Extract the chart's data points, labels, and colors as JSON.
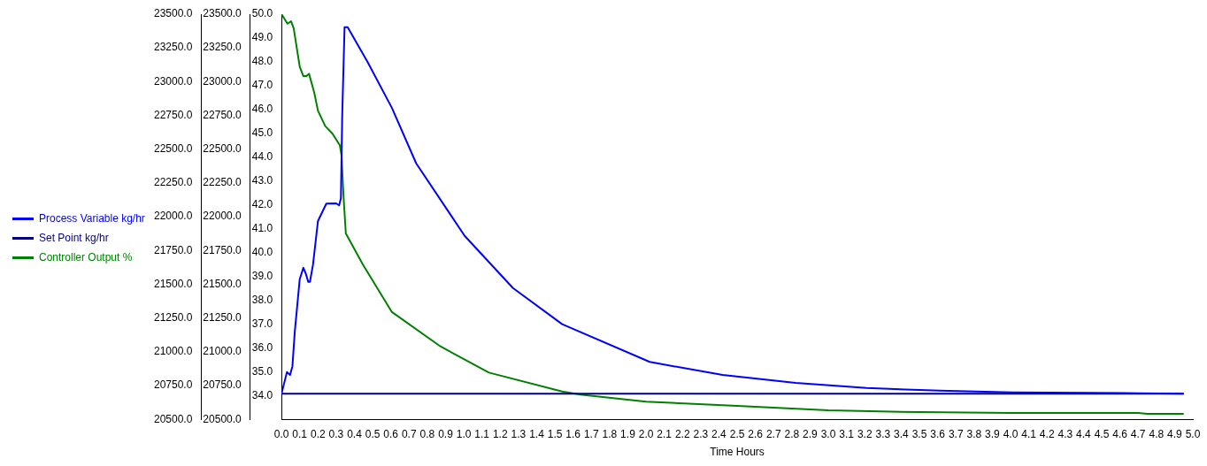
{
  "chart_data": {
    "type": "line",
    "xlabel": "Time Hours",
    "legend": "left",
    "grid": false,
    "marker": "none",
    "line_style": "solid",
    "xlim": [
      0,
      5
    ],
    "xticks": [
      {
        "value": 0,
        "label": "0.0"
      },
      {
        "value": 0.1,
        "label": "0.1"
      },
      {
        "value": 0.2,
        "label": "0.2"
      },
      {
        "value": 0.3,
        "label": "0.3"
      },
      {
        "value": 0.4,
        "label": "0.4"
      },
      {
        "value": 0.5,
        "label": "0.5"
      },
      {
        "value": 0.6,
        "label": "0.6"
      },
      {
        "value": 0.7,
        "label": "0.7"
      },
      {
        "value": 0.8,
        "label": "0.8"
      },
      {
        "value": 0.9,
        "label": "0.9"
      },
      {
        "value": 1,
        "label": "1.0"
      },
      {
        "value": 1.1,
        "label": "1.1"
      },
      {
        "value": 1.2,
        "label": "1.2"
      },
      {
        "value": 1.3,
        "label": "1.3"
      },
      {
        "value": 1.4,
        "label": "1.4"
      },
      {
        "value": 1.5,
        "label": "1.5"
      },
      {
        "value": 1.6,
        "label": "1.6"
      },
      {
        "value": 1.7,
        "label": "1.7"
      },
      {
        "value": 1.8,
        "label": "1.8"
      },
      {
        "value": 1.9,
        "label": "1.9"
      },
      {
        "value": 2,
        "label": "2.0"
      },
      {
        "value": 2.1,
        "label": "2.1"
      },
      {
        "value": 2.2,
        "label": "2.2"
      },
      {
        "value": 2.3,
        "label": "2.3"
      },
      {
        "value": 2.4,
        "label": "2.4"
      },
      {
        "value": 2.5,
        "label": "2.5"
      },
      {
        "value": 2.6,
        "label": "2.6"
      },
      {
        "value": 2.7,
        "label": "2.7"
      },
      {
        "value": 2.8,
        "label": "2.8"
      },
      {
        "value": 2.9,
        "label": "2.9"
      },
      {
        "value": 3,
        "label": "3.0"
      },
      {
        "value": 3.1,
        "label": "3.1"
      },
      {
        "value": 3.2,
        "label": "3.2"
      },
      {
        "value": 3.3,
        "label": "3.3"
      },
      {
        "value": 3.4,
        "label": "3.4"
      },
      {
        "value": 3.5,
        "label": "3.5"
      },
      {
        "value": 3.6,
        "label": "3.6"
      },
      {
        "value": 3.7,
        "label": "3.7"
      },
      {
        "value": 3.8,
        "label": "3.8"
      },
      {
        "value": 3.9,
        "label": "3.9"
      },
      {
        "value": 4,
        "label": "4.0"
      },
      {
        "value": 4.1,
        "label": "4.1"
      },
      {
        "value": 4.2,
        "label": "4.2"
      },
      {
        "value": 4.3,
        "label": "4.3"
      },
      {
        "value": 4.4,
        "label": "4.4"
      },
      {
        "value": 4.5,
        "label": "4.5"
      },
      {
        "value": 4.6,
        "label": "4.6"
      },
      {
        "value": 4.7,
        "label": "4.7"
      },
      {
        "value": 4.8,
        "label": "4.8"
      },
      {
        "value": 4.9,
        "label": "4.9"
      },
      {
        "value": 5,
        "label": "5.0"
      }
    ],
    "ylim": [
      20500,
      23500
    ],
    "yticks": [
      {
        "value": 20500,
        "label": "20500.0"
      },
      {
        "value": 20750,
        "label": "20750.0"
      },
      {
        "value": 21000,
        "label": "21000.0"
      },
      {
        "value": 21250,
        "label": "21250.0"
      },
      {
        "value": 21500,
        "label": "21500.0"
      },
      {
        "value": 21750,
        "label": "21750.0"
      },
      {
        "value": 22000,
        "label": "22000.0"
      },
      {
        "value": 22250,
        "label": "22250.0"
      },
      {
        "value": 22500,
        "label": "22500.0"
      },
      {
        "value": 22750,
        "label": "22750.0"
      },
      {
        "value": 23000,
        "label": "23000.0"
      },
      {
        "value": 23250,
        "label": "23250.0"
      },
      {
        "value": 23500,
        "label": "23500.0"
      }
    ],
    "y2lim": [
      20500,
      23500
    ],
    "y2ticks": [
      {
        "value": 20500,
        "label": "20500.0"
      },
      {
        "value": 20750,
        "label": "20750.0"
      },
      {
        "value": 21000,
        "label": "21000.0"
      },
      {
        "value": 21250,
        "label": "21250.0"
      },
      {
        "value": 21500,
        "label": "21500.0"
      },
      {
        "value": 21750,
        "label": "21750.0"
      },
      {
        "value": 22000,
        "label": "22000.0"
      },
      {
        "value": 22250,
        "label": "22250.0"
      },
      {
        "value": 22500,
        "label": "22500.0"
      },
      {
        "value": 22750,
        "label": "22750.0"
      },
      {
        "value": 23000,
        "label": "23000.0"
      },
      {
        "value": 23250,
        "label": "23250.0"
      },
      {
        "value": 23500,
        "label": "23500.0"
      }
    ],
    "y3lim": [
      33,
      50
    ],
    "y3ticks": [
      {
        "value": 34,
        "label": "34.0"
      },
      {
        "value": 35,
        "label": "35.0"
      },
      {
        "value": 36,
        "label": "36.0"
      },
      {
        "value": 37,
        "label": "37.0"
      },
      {
        "value": 38,
        "label": "38.0"
      },
      {
        "value": 39,
        "label": "39.0"
      },
      {
        "value": 40,
        "label": "40.0"
      },
      {
        "value": 41,
        "label": "41.0"
      },
      {
        "value": 42,
        "label": "42.0"
      },
      {
        "value": 43,
        "label": "43.0"
      },
      {
        "value": 44,
        "label": "44.0"
      },
      {
        "value": 45,
        "label": "45.0"
      },
      {
        "value": 46,
        "label": "46.0"
      },
      {
        "value": 47,
        "label": "47.0"
      },
      {
        "value": 48,
        "label": "48.0"
      },
      {
        "value": 49,
        "label": "49.0"
      },
      {
        "value": 50,
        "label": "50.0"
      }
    ],
    "series": [
      {
        "name": "Process Variable kg/hr",
        "color": "#0000ff",
        "x": [
          0,
          0.03,
          0.047,
          0.06,
          0.073,
          0.1,
          0.12,
          0.133,
          0.147,
          0.156,
          0.173,
          0.2,
          0.246,
          0.3,
          0.316,
          0.326,
          0.333,
          0.346,
          0.363,
          0.472,
          0.606,
          0.739,
          1.005,
          1.27,
          1.54,
          2.02,
          2.42,
          2.82,
          3.21,
          3.61,
          4.01,
          4.7,
          4.95
        ],
        "values": [
          20689,
          20850,
          20828,
          20893,
          21150,
          21537,
          21622,
          21580,
          21517,
          21517,
          21646,
          21968,
          22097,
          22099,
          22084,
          22137,
          22740,
          23403,
          23403,
          23146,
          22805,
          22395,
          21858,
          21472,
          21204,
          20925,
          20828,
          20770,
          20732,
          20712,
          20700,
          20693,
          20690
        ]
      },
      {
        "name": "Set Point kg/hr",
        "color": "#000080",
        "axis": "y2",
        "x": [
          0,
          4.95
        ],
        "values": [
          20690,
          20690
        ]
      },
      {
        "name": "Controller Output %",
        "color": "#008000",
        "axis": "y3",
        "x": [
          0,
          0.033,
          0.053,
          0.067,
          0.1,
          0.12,
          0.137,
          0.151,
          0.18,
          0.2,
          0.24,
          0.28,
          0.32,
          0.329,
          0.34,
          0.353,
          0.446,
          0.606,
          0.872,
          1.138,
          1.54,
          1.64,
          2,
          2.5,
          3,
          3.5,
          4,
          4.7,
          4.75,
          4.95
        ],
        "values": [
          50,
          49.6,
          49.7,
          49.4,
          47.8,
          47.4,
          47.4,
          47.5,
          46.7,
          45.95,
          45.3,
          44.98,
          44.5,
          44.1,
          42.4,
          40.8,
          39.5,
          37.5,
          36.06,
          34.96,
          34.17,
          34.04,
          33.74,
          33.56,
          33.38,
          33.3,
          33.27,
          33.27,
          33.23,
          33.23
        ]
      }
    ]
  }
}
